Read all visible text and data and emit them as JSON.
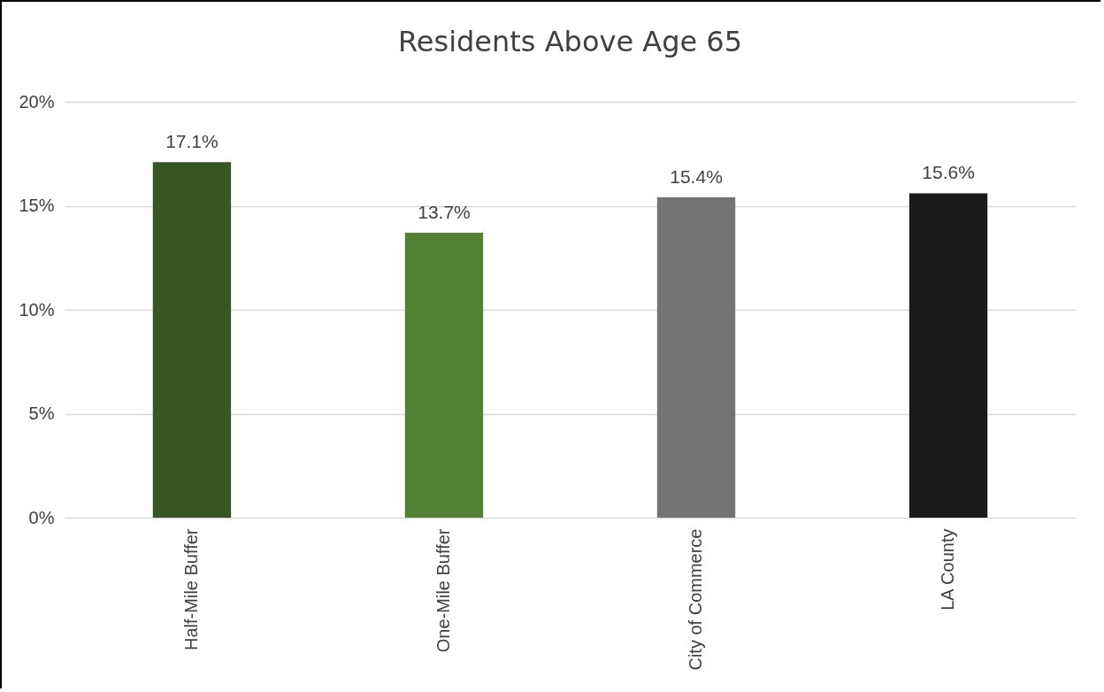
{
  "chart_data": {
    "type": "bar",
    "title": "Residents Above Age 65",
    "categories": [
      "Half-Mile Buffer",
      "One-Mile Buffer",
      "City of Commerce",
      "LA County"
    ],
    "values": [
      17.1,
      13.7,
      15.4,
      15.6
    ],
    "colors": [
      "#375623",
      "#548235",
      "#737373",
      "#1a1a1a"
    ],
    "value_labels": [
      "17.1%",
      "13.7%",
      "15.4%",
      "15.6%"
    ],
    "ylim": [
      0,
      20
    ],
    "yticks": [
      {
        "value": 0,
        "label": "0%"
      },
      {
        "value": 5,
        "label": "5%"
      },
      {
        "value": 10,
        "label": "10%"
      },
      {
        "value": 15,
        "label": "15%"
      },
      {
        "value": 20,
        "label": "20%"
      }
    ],
    "grid": "y"
  }
}
